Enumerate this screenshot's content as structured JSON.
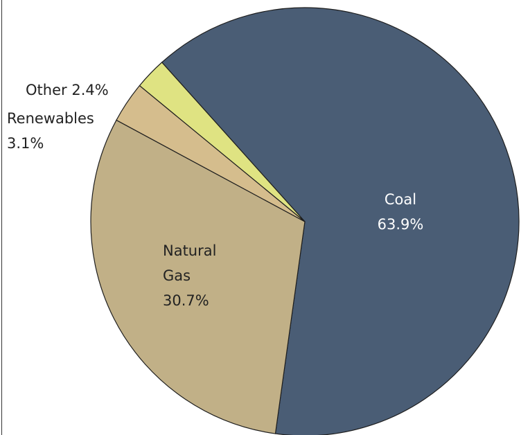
{
  "chart_data": {
    "type": "pie",
    "categories": [
      "Coal",
      "Natural Gas",
      "Renewables",
      "Other"
    ],
    "values": [
      63.9,
      30.7,
      3.1,
      2.4
    ],
    "value_labels": [
      "63.9%",
      "30.7%",
      "3.1%",
      "2.4%"
    ],
    "colors": [
      "#4a5d75",
      "#c1b087",
      "#d5bd8d",
      "#dfe382"
    ]
  }
}
